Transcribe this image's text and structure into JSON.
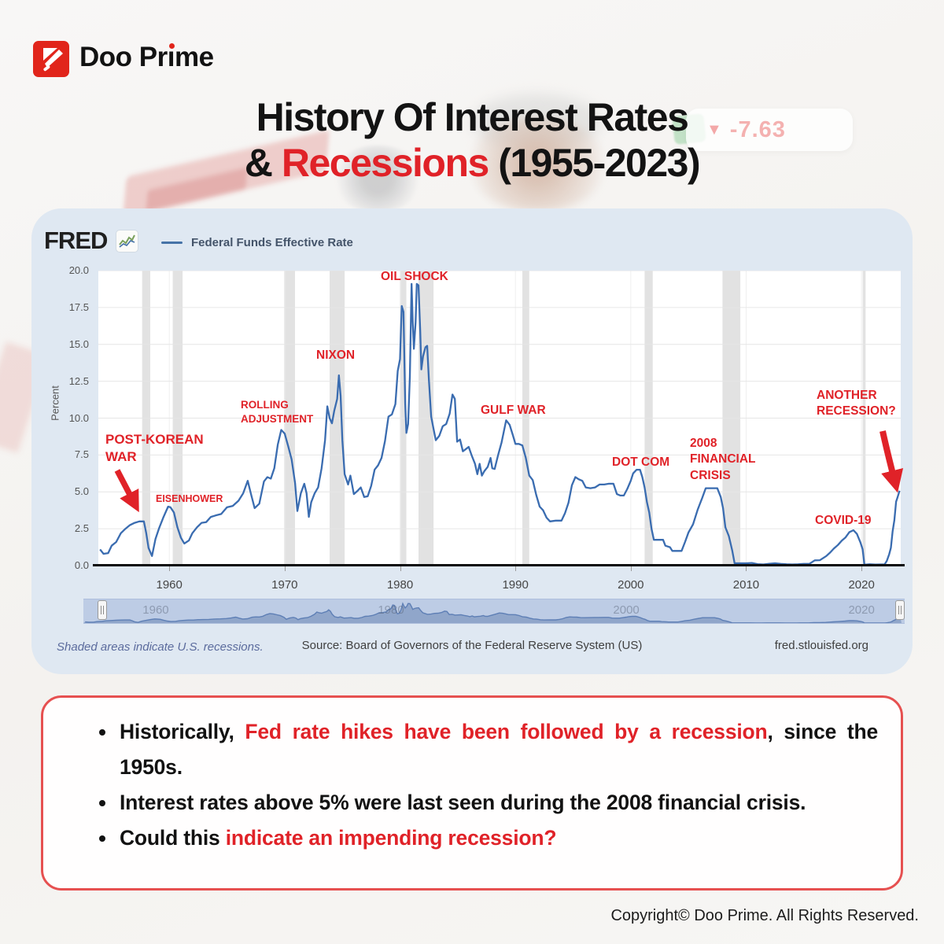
{
  "brand": {
    "name": "Doo Prime"
  },
  "title": {
    "line1": "History Of Interest Rates",
    "line2_prefix": "& ",
    "line2_highlight": "Recessions",
    "line2_suffix": " (1955-2023)"
  },
  "icons": {
    "down_triangle": "▼"
  },
  "watermark": {
    "change_value": "-7.63"
  },
  "chart_panel": {
    "logo": "FRED",
    "legend": "Federal Funds Effective Rate",
    "footnote": "Shaded areas indicate U.S. recessions.",
    "source": "Source: Board of Governors of the Federal Reserve System (US)",
    "site": "fred.stlouisfed.org"
  },
  "chart_data": {
    "type": "line",
    "title": "Federal Funds Effective Rate",
    "ylabel": "Percent",
    "ylim": [
      0,
      20
    ],
    "xlim": [
      1953.85,
      2023.4
    ],
    "yticks": [
      0,
      2.5,
      5,
      7.5,
      10,
      12.5,
      15,
      17.5,
      20
    ],
    "xticks": [
      1960,
      1970,
      1980,
      1990,
      2000,
      2010,
      2020
    ],
    "grid": true,
    "legend_position": "top-left",
    "line_color": "#3a6cb0",
    "recession_band_color": "#e2e2e2",
    "slider_labels": [
      "1960",
      "1980",
      "2000",
      "2020"
    ],
    "recessions": [
      [
        1957.65,
        1958.35
      ],
      [
        1960.3,
        1961.15
      ],
      [
        1969.95,
        1970.9
      ],
      [
        1973.9,
        1975.2
      ],
      [
        1980.05,
        1980.55
      ],
      [
        1981.6,
        1982.9
      ],
      [
        1990.6,
        1991.2
      ],
      [
        2001.2,
        2001.9
      ],
      [
        2007.95,
        2009.5
      ],
      [
        2020.1,
        2020.35
      ]
    ],
    "annotations": [
      {
        "text": "POST-KOREAN\nWAR",
        "year": 1957.5,
        "value": 3.5
      },
      {
        "text": "EISENHOWER",
        "year": 1959.0,
        "value": 4.9
      },
      {
        "text": "ROLLING\nADJUSTMENT",
        "year": 1966.3,
        "value": 11.3
      },
      {
        "text": "NIXON",
        "year": 1974.7,
        "value": 12.9
      },
      {
        "text": "OIL SHOCK",
        "year": 1981.0,
        "value": 19.1
      },
      {
        "text": "GULF WAR",
        "year": 1989.2,
        "value": 9.85
      },
      {
        "text": "DOT COM",
        "year": 2000.5,
        "value": 6.5
      },
      {
        "text": "2008\nFINANCIAL\nCRISIS",
        "year": 2007.0,
        "value": 5.25
      },
      {
        "text": "COVID-19",
        "year": 2019.3,
        "value": 2.4
      },
      {
        "text": "ANOTHER\nRECESSION?",
        "year": 2023.3,
        "value": 5.08
      }
    ],
    "series": [
      {
        "name": "Federal Funds Effective Rate",
        "points": [
          [
            1954.0,
            1.1
          ],
          [
            1954.3,
            0.8
          ],
          [
            1954.7,
            0.85
          ],
          [
            1955.0,
            1.35
          ],
          [
            1955.4,
            1.6
          ],
          [
            1955.8,
            2.2
          ],
          [
            1956.2,
            2.5
          ],
          [
            1956.6,
            2.75
          ],
          [
            1957.0,
            2.9
          ],
          [
            1957.4,
            3.0
          ],
          [
            1957.8,
            3.0
          ],
          [
            1958.0,
            2.2
          ],
          [
            1958.2,
            1.2
          ],
          [
            1958.5,
            0.65
          ],
          [
            1958.8,
            1.8
          ],
          [
            1959.1,
            2.5
          ],
          [
            1959.5,
            3.3
          ],
          [
            1959.9,
            4.0
          ],
          [
            1960.1,
            3.95
          ],
          [
            1960.4,
            3.6
          ],
          [
            1960.7,
            2.6
          ],
          [
            1961.0,
            1.9
          ],
          [
            1961.3,
            1.5
          ],
          [
            1961.7,
            1.7
          ],
          [
            1962.0,
            2.2
          ],
          [
            1962.4,
            2.6
          ],
          [
            1962.8,
            2.9
          ],
          [
            1963.2,
            2.95
          ],
          [
            1963.6,
            3.3
          ],
          [
            1964.0,
            3.4
          ],
          [
            1964.5,
            3.5
          ],
          [
            1965.0,
            3.95
          ],
          [
            1965.5,
            4.05
          ],
          [
            1966.0,
            4.4
          ],
          [
            1966.4,
            4.9
          ],
          [
            1966.8,
            5.75
          ],
          [
            1967.1,
            4.8
          ],
          [
            1967.4,
            3.9
          ],
          [
            1967.8,
            4.2
          ],
          [
            1968.2,
            5.7
          ],
          [
            1968.5,
            6.0
          ],
          [
            1968.8,
            5.9
          ],
          [
            1969.1,
            6.6
          ],
          [
            1969.4,
            8.2
          ],
          [
            1969.7,
            9.2
          ],
          [
            1970.0,
            8.95
          ],
          [
            1970.3,
            8.1
          ],
          [
            1970.6,
            7.2
          ],
          [
            1970.9,
            5.6
          ],
          [
            1971.1,
            3.7
          ],
          [
            1971.4,
            4.9
          ],
          [
            1971.7,
            5.55
          ],
          [
            1971.9,
            4.9
          ],
          [
            1972.1,
            3.3
          ],
          [
            1972.3,
            4.3
          ],
          [
            1972.6,
            4.9
          ],
          [
            1972.9,
            5.3
          ],
          [
            1973.2,
            6.6
          ],
          [
            1973.5,
            8.5
          ],
          [
            1973.7,
            10.8
          ],
          [
            1973.9,
            10.0
          ],
          [
            1974.1,
            9.65
          ],
          [
            1974.3,
            10.5
          ],
          [
            1974.55,
            11.3
          ],
          [
            1974.7,
            12.9
          ],
          [
            1974.85,
            11.5
          ],
          [
            1975.0,
            8.5
          ],
          [
            1975.2,
            6.2
          ],
          [
            1975.5,
            5.5
          ],
          [
            1975.7,
            6.1
          ],
          [
            1976.0,
            4.85
          ],
          [
            1976.3,
            5.05
          ],
          [
            1976.6,
            5.3
          ],
          [
            1976.9,
            4.65
          ],
          [
            1977.2,
            4.7
          ],
          [
            1977.5,
            5.4
          ],
          [
            1977.8,
            6.5
          ],
          [
            1978.1,
            6.8
          ],
          [
            1978.4,
            7.3
          ],
          [
            1978.7,
            8.45
          ],
          [
            1979.0,
            10.1
          ],
          [
            1979.3,
            10.25
          ],
          [
            1979.6,
            10.95
          ],
          [
            1979.8,
            13.2
          ],
          [
            1980.0,
            14.0
          ],
          [
            1980.15,
            17.6
          ],
          [
            1980.3,
            17.2
          ],
          [
            1980.45,
            11.0
          ],
          [
            1980.55,
            9.0
          ],
          [
            1980.7,
            9.6
          ],
          [
            1980.85,
            12.8
          ],
          [
            1981.0,
            19.1
          ],
          [
            1981.1,
            16.6
          ],
          [
            1981.2,
            14.7
          ],
          [
            1981.35,
            16.5
          ],
          [
            1981.45,
            19.1
          ],
          [
            1981.6,
            19.0
          ],
          [
            1981.75,
            15.9
          ],
          [
            1981.85,
            13.3
          ],
          [
            1982.0,
            14.2
          ],
          [
            1982.2,
            14.8
          ],
          [
            1982.35,
            14.9
          ],
          [
            1982.5,
            12.6
          ],
          [
            1982.7,
            10.1
          ],
          [
            1982.9,
            9.3
          ],
          [
            1983.1,
            8.5
          ],
          [
            1983.4,
            8.8
          ],
          [
            1983.7,
            9.45
          ],
          [
            1984.0,
            9.6
          ],
          [
            1984.3,
            10.3
          ],
          [
            1984.55,
            11.6
          ],
          [
            1984.75,
            11.3
          ],
          [
            1984.95,
            8.4
          ],
          [
            1985.2,
            8.55
          ],
          [
            1985.45,
            7.75
          ],
          [
            1985.7,
            7.9
          ],
          [
            1985.95,
            8.05
          ],
          [
            1986.2,
            7.5
          ],
          [
            1986.5,
            6.9
          ],
          [
            1986.7,
            6.2
          ],
          [
            1986.9,
            6.9
          ],
          [
            1987.1,
            6.1
          ],
          [
            1987.3,
            6.4
          ],
          [
            1987.6,
            6.7
          ],
          [
            1987.85,
            7.3
          ],
          [
            1988.0,
            6.6
          ],
          [
            1988.2,
            6.55
          ],
          [
            1988.5,
            7.5
          ],
          [
            1988.8,
            8.35
          ],
          [
            1989.0,
            9.1
          ],
          [
            1989.2,
            9.85
          ],
          [
            1989.5,
            9.55
          ],
          [
            1989.8,
            8.8
          ],
          [
            1990.0,
            8.25
          ],
          [
            1990.3,
            8.25
          ],
          [
            1990.6,
            8.15
          ],
          [
            1990.9,
            7.3
          ],
          [
            1991.2,
            6.1
          ],
          [
            1991.5,
            5.8
          ],
          [
            1991.8,
            4.8
          ],
          [
            1992.1,
            4.0
          ],
          [
            1992.4,
            3.75
          ],
          [
            1992.7,
            3.25
          ],
          [
            1993.0,
            3.0
          ],
          [
            1993.5,
            3.05
          ],
          [
            1994.0,
            3.05
          ],
          [
            1994.3,
            3.55
          ],
          [
            1994.6,
            4.25
          ],
          [
            1994.9,
            5.45
          ],
          [
            1995.2,
            6.0
          ],
          [
            1995.5,
            5.85
          ],
          [
            1995.8,
            5.75
          ],
          [
            1996.1,
            5.3
          ],
          [
            1996.5,
            5.25
          ],
          [
            1996.9,
            5.3
          ],
          [
            1997.3,
            5.5
          ],
          [
            1997.7,
            5.5
          ],
          [
            1998.1,
            5.55
          ],
          [
            1998.5,
            5.55
          ],
          [
            1998.8,
            4.85
          ],
          [
            1999.1,
            4.75
          ],
          [
            1999.4,
            4.75
          ],
          [
            1999.7,
            5.2
          ],
          [
            2000.0,
            5.75
          ],
          [
            2000.2,
            6.25
          ],
          [
            2000.5,
            6.5
          ],
          [
            2000.8,
            6.5
          ],
          [
            2001.0,
            6.0
          ],
          [
            2001.2,
            5.3
          ],
          [
            2001.4,
            4.3
          ],
          [
            2001.6,
            3.6
          ],
          [
            2001.8,
            2.5
          ],
          [
            2002.0,
            1.75
          ],
          [
            2002.4,
            1.75
          ],
          [
            2002.8,
            1.75
          ],
          [
            2003.0,
            1.35
          ],
          [
            2003.4,
            1.25
          ],
          [
            2003.6,
            1.0
          ],
          [
            2004.0,
            1.0
          ],
          [
            2004.4,
            1.0
          ],
          [
            2004.7,
            1.6
          ],
          [
            2005.0,
            2.25
          ],
          [
            2005.4,
            2.8
          ],
          [
            2005.8,
            3.8
          ],
          [
            2006.2,
            4.6
          ],
          [
            2006.5,
            5.25
          ],
          [
            2007.0,
            5.25
          ],
          [
            2007.5,
            5.25
          ],
          [
            2007.8,
            4.65
          ],
          [
            2008.0,
            3.9
          ],
          [
            2008.2,
            2.6
          ],
          [
            2008.5,
            2.0
          ],
          [
            2008.8,
            1.0
          ],
          [
            2009.0,
            0.16
          ],
          [
            2009.5,
            0.16
          ],
          [
            2010.0,
            0.16
          ],
          [
            2010.5,
            0.18
          ],
          [
            2011.0,
            0.1
          ],
          [
            2011.5,
            0.08
          ],
          [
            2012.0,
            0.13
          ],
          [
            2012.5,
            0.16
          ],
          [
            2013.0,
            0.12
          ],
          [
            2013.5,
            0.09
          ],
          [
            2014.0,
            0.08
          ],
          [
            2014.5,
            0.09
          ],
          [
            2015.0,
            0.12
          ],
          [
            2015.5,
            0.13
          ],
          [
            2015.95,
            0.36
          ],
          [
            2016.4,
            0.37
          ],
          [
            2016.95,
            0.65
          ],
          [
            2017.3,
            0.9
          ],
          [
            2017.6,
            1.15
          ],
          [
            2017.95,
            1.4
          ],
          [
            2018.3,
            1.7
          ],
          [
            2018.6,
            1.9
          ],
          [
            2018.95,
            2.27
          ],
          [
            2019.3,
            2.4
          ],
          [
            2019.6,
            2.15
          ],
          [
            2019.9,
            1.58
          ],
          [
            2020.1,
            1.1
          ],
          [
            2020.25,
            0.06
          ],
          [
            2020.7,
            0.09
          ],
          [
            2021.2,
            0.07
          ],
          [
            2021.7,
            0.08
          ],
          [
            2022.0,
            0.08
          ],
          [
            2022.2,
            0.33
          ],
          [
            2022.4,
            0.77
          ],
          [
            2022.55,
            1.21
          ],
          [
            2022.7,
            2.33
          ],
          [
            2022.85,
            3.08
          ],
          [
            2023.0,
            4.33
          ],
          [
            2023.1,
            4.57
          ],
          [
            2023.2,
            4.83
          ],
          [
            2023.3,
            5.08
          ]
        ]
      }
    ]
  },
  "bullets": [
    {
      "segments": [
        {
          "t": "Historically, ",
          "red": false
        },
        {
          "t": "Fed rate hikes have been followed by a recession",
          "red": true
        },
        {
          "t": ", since the 1950s.",
          "red": false
        }
      ]
    },
    {
      "segments": [
        {
          "t": "Interest rates above 5% were last seen during the 2008 financial crisis.",
          "red": false
        }
      ]
    },
    {
      "segments": [
        {
          "t": "Could this ",
          "red": false
        },
        {
          "t": "indicate an impending recession?",
          "red": true
        }
      ]
    }
  ],
  "footer": {
    "copyright": "Copyright© Doo Prime. All Rights Reserved."
  },
  "colors": {
    "accent_red": "#e02228",
    "line_blue": "#3a6cb0",
    "card_bg": "#dfe8f2",
    "recession_gray": "#e2e2e2",
    "slider_bg": "#bdcce5",
    "bullet_border_red": "#e65050",
    "logo_red": "#e1251b"
  }
}
